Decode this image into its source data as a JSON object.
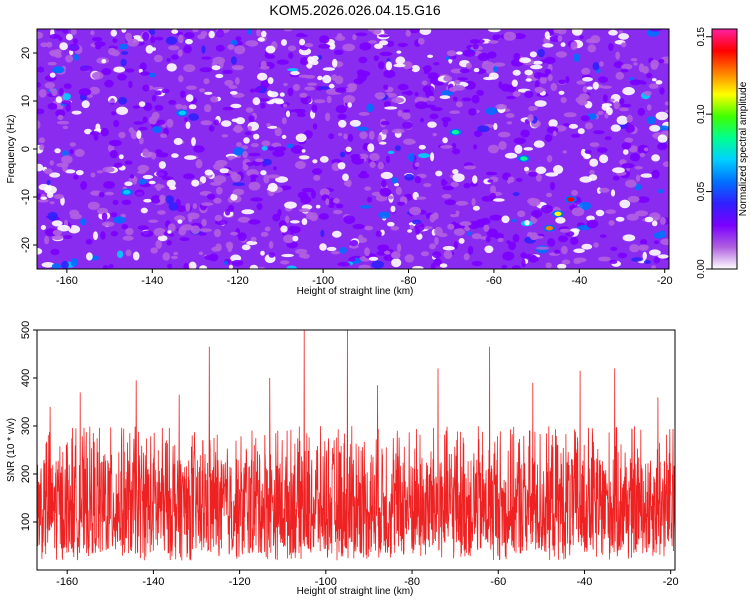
{
  "title": "KOM5.2026.026.04.15.G16",
  "chart_data": [
    {
      "type": "heatmap",
      "xlabel": "Height of straight line (km)",
      "ylabel": "Frequency (Hz)",
      "xlim": [
        -167,
        -19
      ],
      "ylim": [
        -25,
        25
      ],
      "x_ticks": [
        -160,
        -140,
        -120,
        -100,
        -80,
        -60,
        -40,
        -20
      ],
      "y_ticks": [
        -20,
        -10,
        0,
        10,
        20
      ],
      "colorbar": {
        "label": "Normalized spectral amplitude",
        "range": [
          0.0,
          0.155
        ],
        "ticks": [
          "0.00",
          "0.05",
          "0.10",
          "0.15"
        ],
        "colors": [
          "#ffffff",
          "#b060e0",
          "#7a00ff",
          "#3020ff",
          "#0070ff",
          "#00d0ff",
          "#00ff90",
          "#40ff00",
          "#ffff00",
          "#ff8000",
          "#ff0000",
          "#ff20a0"
        ]
      },
      "notable_peaks": [
        {
          "x": -42,
          "y": -10.5,
          "value": 0.15
        },
        {
          "x": -47,
          "y": -16.5,
          "value": 0.14
        },
        {
          "x": -45,
          "y": -13.5,
          "value": 0.12
        },
        {
          "x": -53,
          "y": -2,
          "value": 0.09
        },
        {
          "x": -69,
          "y": 3.5,
          "value": 0.09
        },
        {
          "x": -133,
          "y": 7.5,
          "value": 0.08
        },
        {
          "x": -146,
          "y": -9,
          "value": 0.08
        },
        {
          "x": -162,
          "y": 16.5,
          "value": 0.07
        }
      ],
      "background_level": [
        0.01,
        0.04
      ]
    },
    {
      "type": "line",
      "xlabel": "Height of straight line (km)",
      "ylabel": "SNR (10 * v/v)",
      "xlim": [
        -167,
        -19
      ],
      "ylim": [
        0,
        500
      ],
      "x_ticks": [
        -160,
        -140,
        -120,
        -100,
        -80,
        -60,
        -40,
        -20
      ],
      "y_ticks": [
        100,
        200,
        300,
        400,
        500
      ],
      "color": "#ee2222",
      "baseline_range": [
        20,
        300
      ],
      "typical_mean": 150,
      "peaks": [
        {
          "x": -164,
          "y": 340
        },
        {
          "x": -157,
          "y": 370
        },
        {
          "x": -144,
          "y": 395
        },
        {
          "x": -134,
          "y": 365
        },
        {
          "x": -127,
          "y": 465
        },
        {
          "x": -113,
          "y": 400
        },
        {
          "x": -105,
          "y": 500
        },
        {
          "x": -95,
          "y": 500
        },
        {
          "x": -88,
          "y": 385
        },
        {
          "x": -74,
          "y": 420
        },
        {
          "x": -62,
          "y": 465
        },
        {
          "x": -52,
          "y": 390
        },
        {
          "x": -41,
          "y": 415
        },
        {
          "x": -33,
          "y": 420
        },
        {
          "x": -23,
          "y": 360
        }
      ]
    }
  ]
}
